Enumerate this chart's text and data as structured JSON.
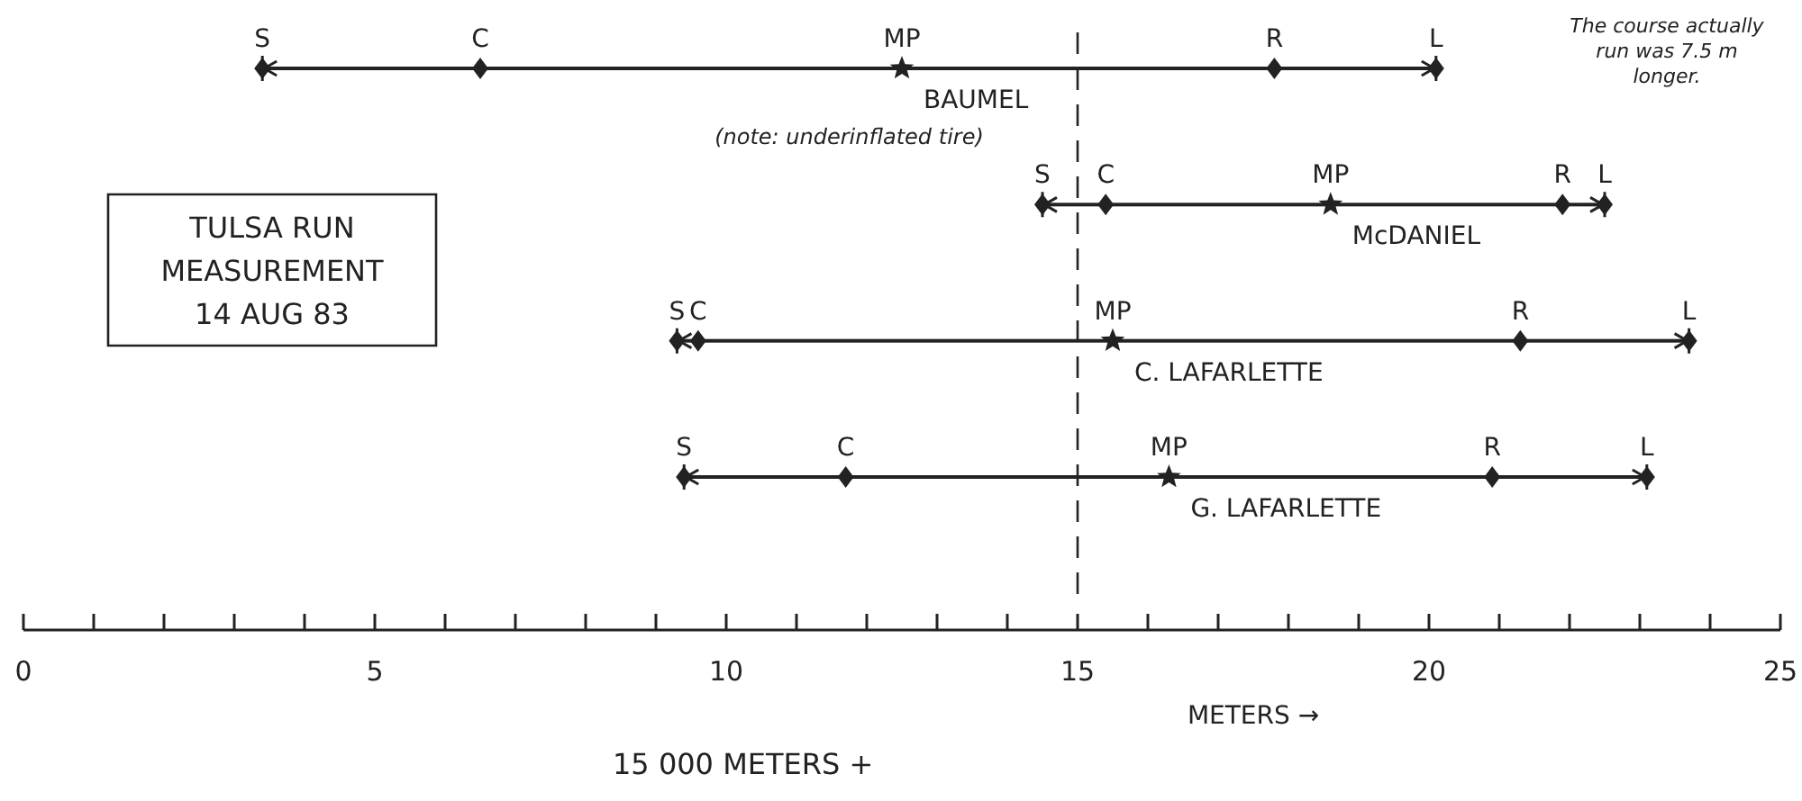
{
  "chart_data": {
    "type": "bar",
    "orientation": "horizontal",
    "title": "TULSA RUN\nMEASUREMENT\n14 AUG 83",
    "xlabel": "METERS →",
    "categories": [
      "BAUMEL",
      "McDANIEL",
      "C. LAFARLETTE",
      "G. LAFARLETTE"
    ],
    "xlim": [
      0,
      25
    ],
    "xticks": [
      0,
      {
        "value": 1,
        "label": null
      },
      {
        "value": 2,
        "label": null
      },
      {
        "value": 3,
        "label": null
      },
      {
        "value": 4,
        "label": null
      },
      5,
      {
        "value": 6,
        "label": null
      },
      {
        "value": 7,
        "label": null
      },
      {
        "value": 8,
        "label": null
      },
      {
        "value": 9,
        "label": null
      },
      10,
      {
        "value": 11,
        "label": null
      },
      {
        "value": 12,
        "label": null
      },
      {
        "value": 13,
        "label": null
      },
      {
        "value": 14,
        "label": null
      },
      15,
      {
        "value": 16,
        "label": null
      },
      {
        "value": 17,
        "label": null
      },
      {
        "value": 18,
        "label": null
      },
      {
        "value": 19,
        "label": null
      },
      20,
      {
        "value": 21,
        "label": null
      },
      {
        "value": 22,
        "label": null
      },
      {
        "value": 23,
        "label": null
      },
      {
        "value": 24,
        "label": null
      },
      25
    ],
    "series": [
      {
        "color": "#222222",
        "base": [
          3.4,
          14.5,
          9.3,
          9.4
        ],
        "values": [
          16.7,
          8.0,
          14.4,
          13.7
        ]
      },
      {
        "type": "scatter",
        "name": "S",
        "color": "#222222",
        "marker": "diamond",
        "values": [
          3.4,
          14.5,
          9.3,
          9.4
        ]
      },
      {
        "type": "scatter",
        "name": "C",
        "color": "#222222",
        "marker": "diamond",
        "values": [
          6.5,
          15.4,
          9.6,
          11.7
        ]
      },
      {
        "type": "scatter",
        "name": "MP",
        "color": "#222222",
        "marker": "star",
        "values": [
          12.5,
          18.6,
          15.5,
          16.3
        ]
      },
      {
        "type": "scatter",
        "name": "R",
        "color": "#222222",
        "marker": "diamond",
        "values": [
          17.8,
          21.9,
          21.3,
          20.9
        ]
      },
      {
        "type": "scatter",
        "name": "L",
        "color": "#222222",
        "marker": "diamond",
        "values": [
          20.1,
          22.5,
          23.7,
          23.1
        ]
      }
    ],
    "ref_lines": [
      {
        "axis": "x",
        "value": 15,
        "line_style": "dashed",
        "color": "#222222"
      }
    ],
    "annotations": [
      "(note: underinflated tire)",
      "The course actually run was 7.5 m longer.",
      "15 000 METERS +"
    ]
  }
}
